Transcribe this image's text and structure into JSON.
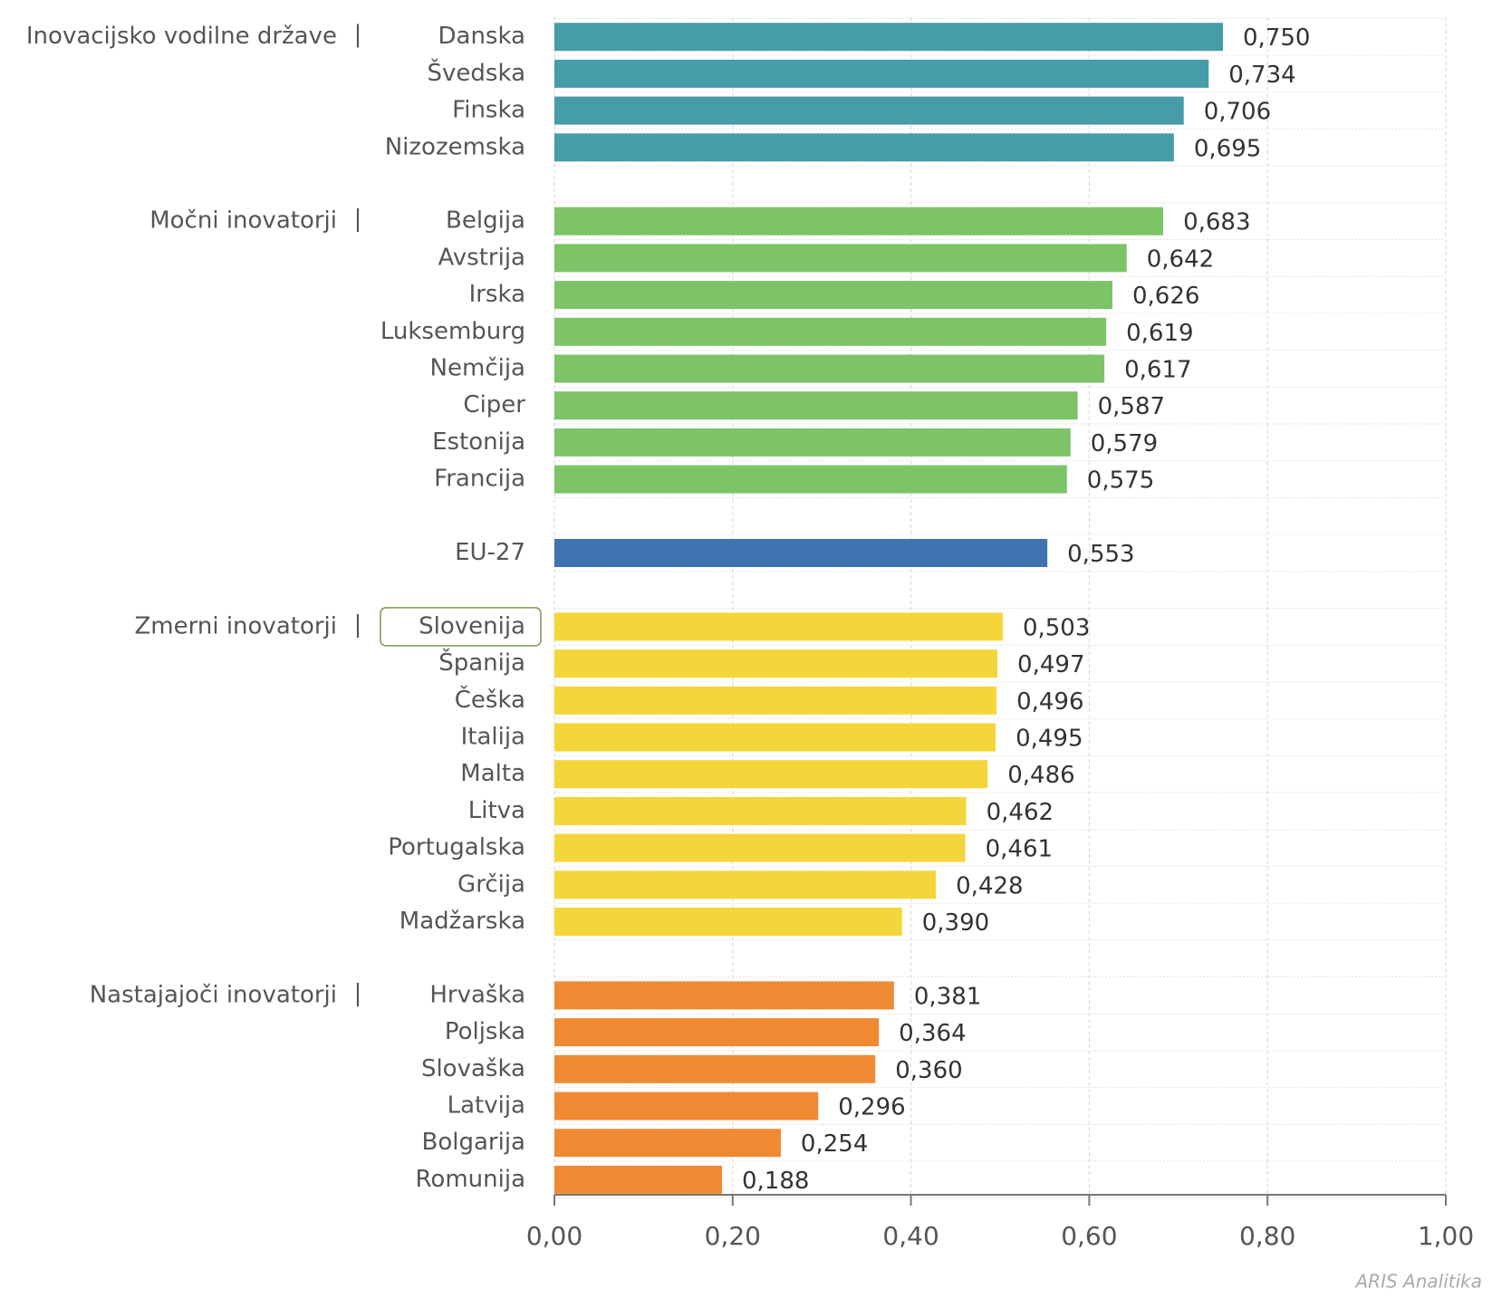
{
  "chart_data": {
    "type": "bar",
    "orientation": "horizontal",
    "separator": "|",
    "highlight": "Slovenija",
    "groups": [
      {
        "name": "Inovacijsko vodilne države",
        "color": "#469ca9",
        "categories": [
          "Danska",
          "Švedska",
          "Finska",
          "Nizozemska"
        ],
        "values": [
          0.75,
          0.734,
          0.706,
          0.695
        ],
        "value_labels": [
          "0,750",
          "0,734",
          "0,706",
          "0,695"
        ]
      },
      {
        "name": "Močni inovatorji",
        "color": "#7cc467",
        "categories": [
          "Belgija",
          "Avstrija",
          "Irska",
          "Luksemburg",
          "Nemčija",
          "Ciper",
          "Estonija",
          "Francija"
        ],
        "values": [
          0.683,
          0.642,
          0.626,
          0.619,
          0.617,
          0.587,
          0.579,
          0.575
        ],
        "value_labels": [
          "0,683",
          "0,642",
          "0,626",
          "0,619",
          "0,617",
          "0,587",
          "0,579",
          "0,575"
        ]
      },
      {
        "color": "#4172b0",
        "categories": [
          "EU-27"
        ],
        "values": [
          0.553
        ],
        "value_labels": [
          "0,553"
        ]
      },
      {
        "name": "Zmerni inovatorji",
        "color": "#f4d63a",
        "categories": [
          "Slovenija",
          "Španija",
          "Češka",
          "Italija",
          "Malta",
          "Litva",
          "Portugalska",
          "Grčija",
          "Madžarska"
        ],
        "values": [
          0.503,
          0.497,
          0.496,
          0.495,
          0.486,
          0.462,
          0.461,
          0.428,
          0.39
        ],
        "value_labels": [
          "0,503",
          "0,497",
          "0,496",
          "0,495",
          "0,486",
          "0,462",
          "0,461",
          "0,428",
          "0,390"
        ]
      },
      {
        "name": "Nastajajoči inovatorji",
        "color": "#f08a32",
        "categories": [
          "Hrvaška",
          "Poljska",
          "Slovaška",
          "Latvija",
          "Bolgarija",
          "Romunija"
        ],
        "values": [
          0.381,
          0.364,
          0.36,
          0.296,
          0.254,
          0.188
        ],
        "value_labels": [
          "0,381",
          "0,364",
          "0,360",
          "0,296",
          "0,254",
          "0,188"
        ]
      }
    ],
    "xlim": [
      0,
      1
    ],
    "xticks": [
      {
        "value": 0,
        "label": "0,00"
      },
      {
        "value": 0.2,
        "label": "0,20"
      },
      {
        "value": 0.4,
        "label": "0,40"
      },
      {
        "value": 0.6,
        "label": "0,60"
      },
      {
        "value": 0.8,
        "label": "0,80"
      },
      {
        "value": 1,
        "label": "1,00"
      }
    ],
    "grid": true,
    "source": "ARIS Analitika"
  }
}
